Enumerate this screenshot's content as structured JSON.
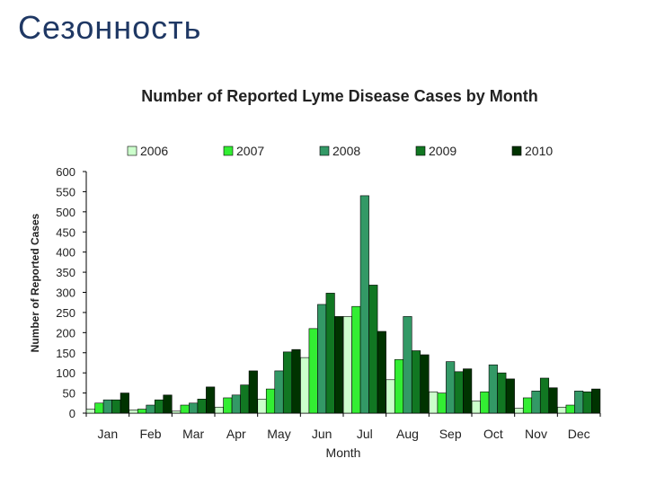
{
  "slide_title": "Сезонность",
  "chart_data": {
    "type": "bar",
    "title": "Number of Reported Lyme Disease Cases by Month",
    "xlabel": "Month",
    "ylabel": "Number of Reported Cases",
    "ylim": [
      0,
      600
    ],
    "yticks": [
      0,
      50,
      100,
      150,
      200,
      250,
      300,
      350,
      400,
      450,
      500,
      550,
      600
    ],
    "legend_position": "top",
    "grid": false,
    "categories": [
      "Jan",
      "Feb",
      "Mar",
      "Apr",
      "May",
      "Jun",
      "Jul",
      "Aug",
      "Sep",
      "Oct",
      "Nov",
      "Dec"
    ],
    "series": [
      {
        "name": "2006",
        "color": "#ccffcc",
        "values": [
          10,
          8,
          5,
          15,
          35,
          138,
          240,
          83,
          53,
          30,
          12,
          15
        ]
      },
      {
        "name": "2007",
        "color": "#33ee33",
        "values": [
          25,
          10,
          20,
          38,
          60,
          210,
          265,
          133,
          50,
          53,
          38,
          20
        ]
      },
      {
        "name": "2008",
        "color": "#339966",
        "values": [
          33,
          20,
          25,
          45,
          105,
          270,
          540,
          240,
          128,
          120,
          55,
          55
        ]
      },
      {
        "name": "2009",
        "color": "#117722",
        "values": [
          33,
          33,
          35,
          70,
          152,
          298,
          318,
          155,
          103,
          100,
          87,
          53
        ]
      },
      {
        "name": "2010",
        "color": "#003300",
        "values": [
          50,
          45,
          65,
          105,
          158,
          240,
          203,
          145,
          110,
          85,
          63,
          60
        ]
      }
    ]
  }
}
